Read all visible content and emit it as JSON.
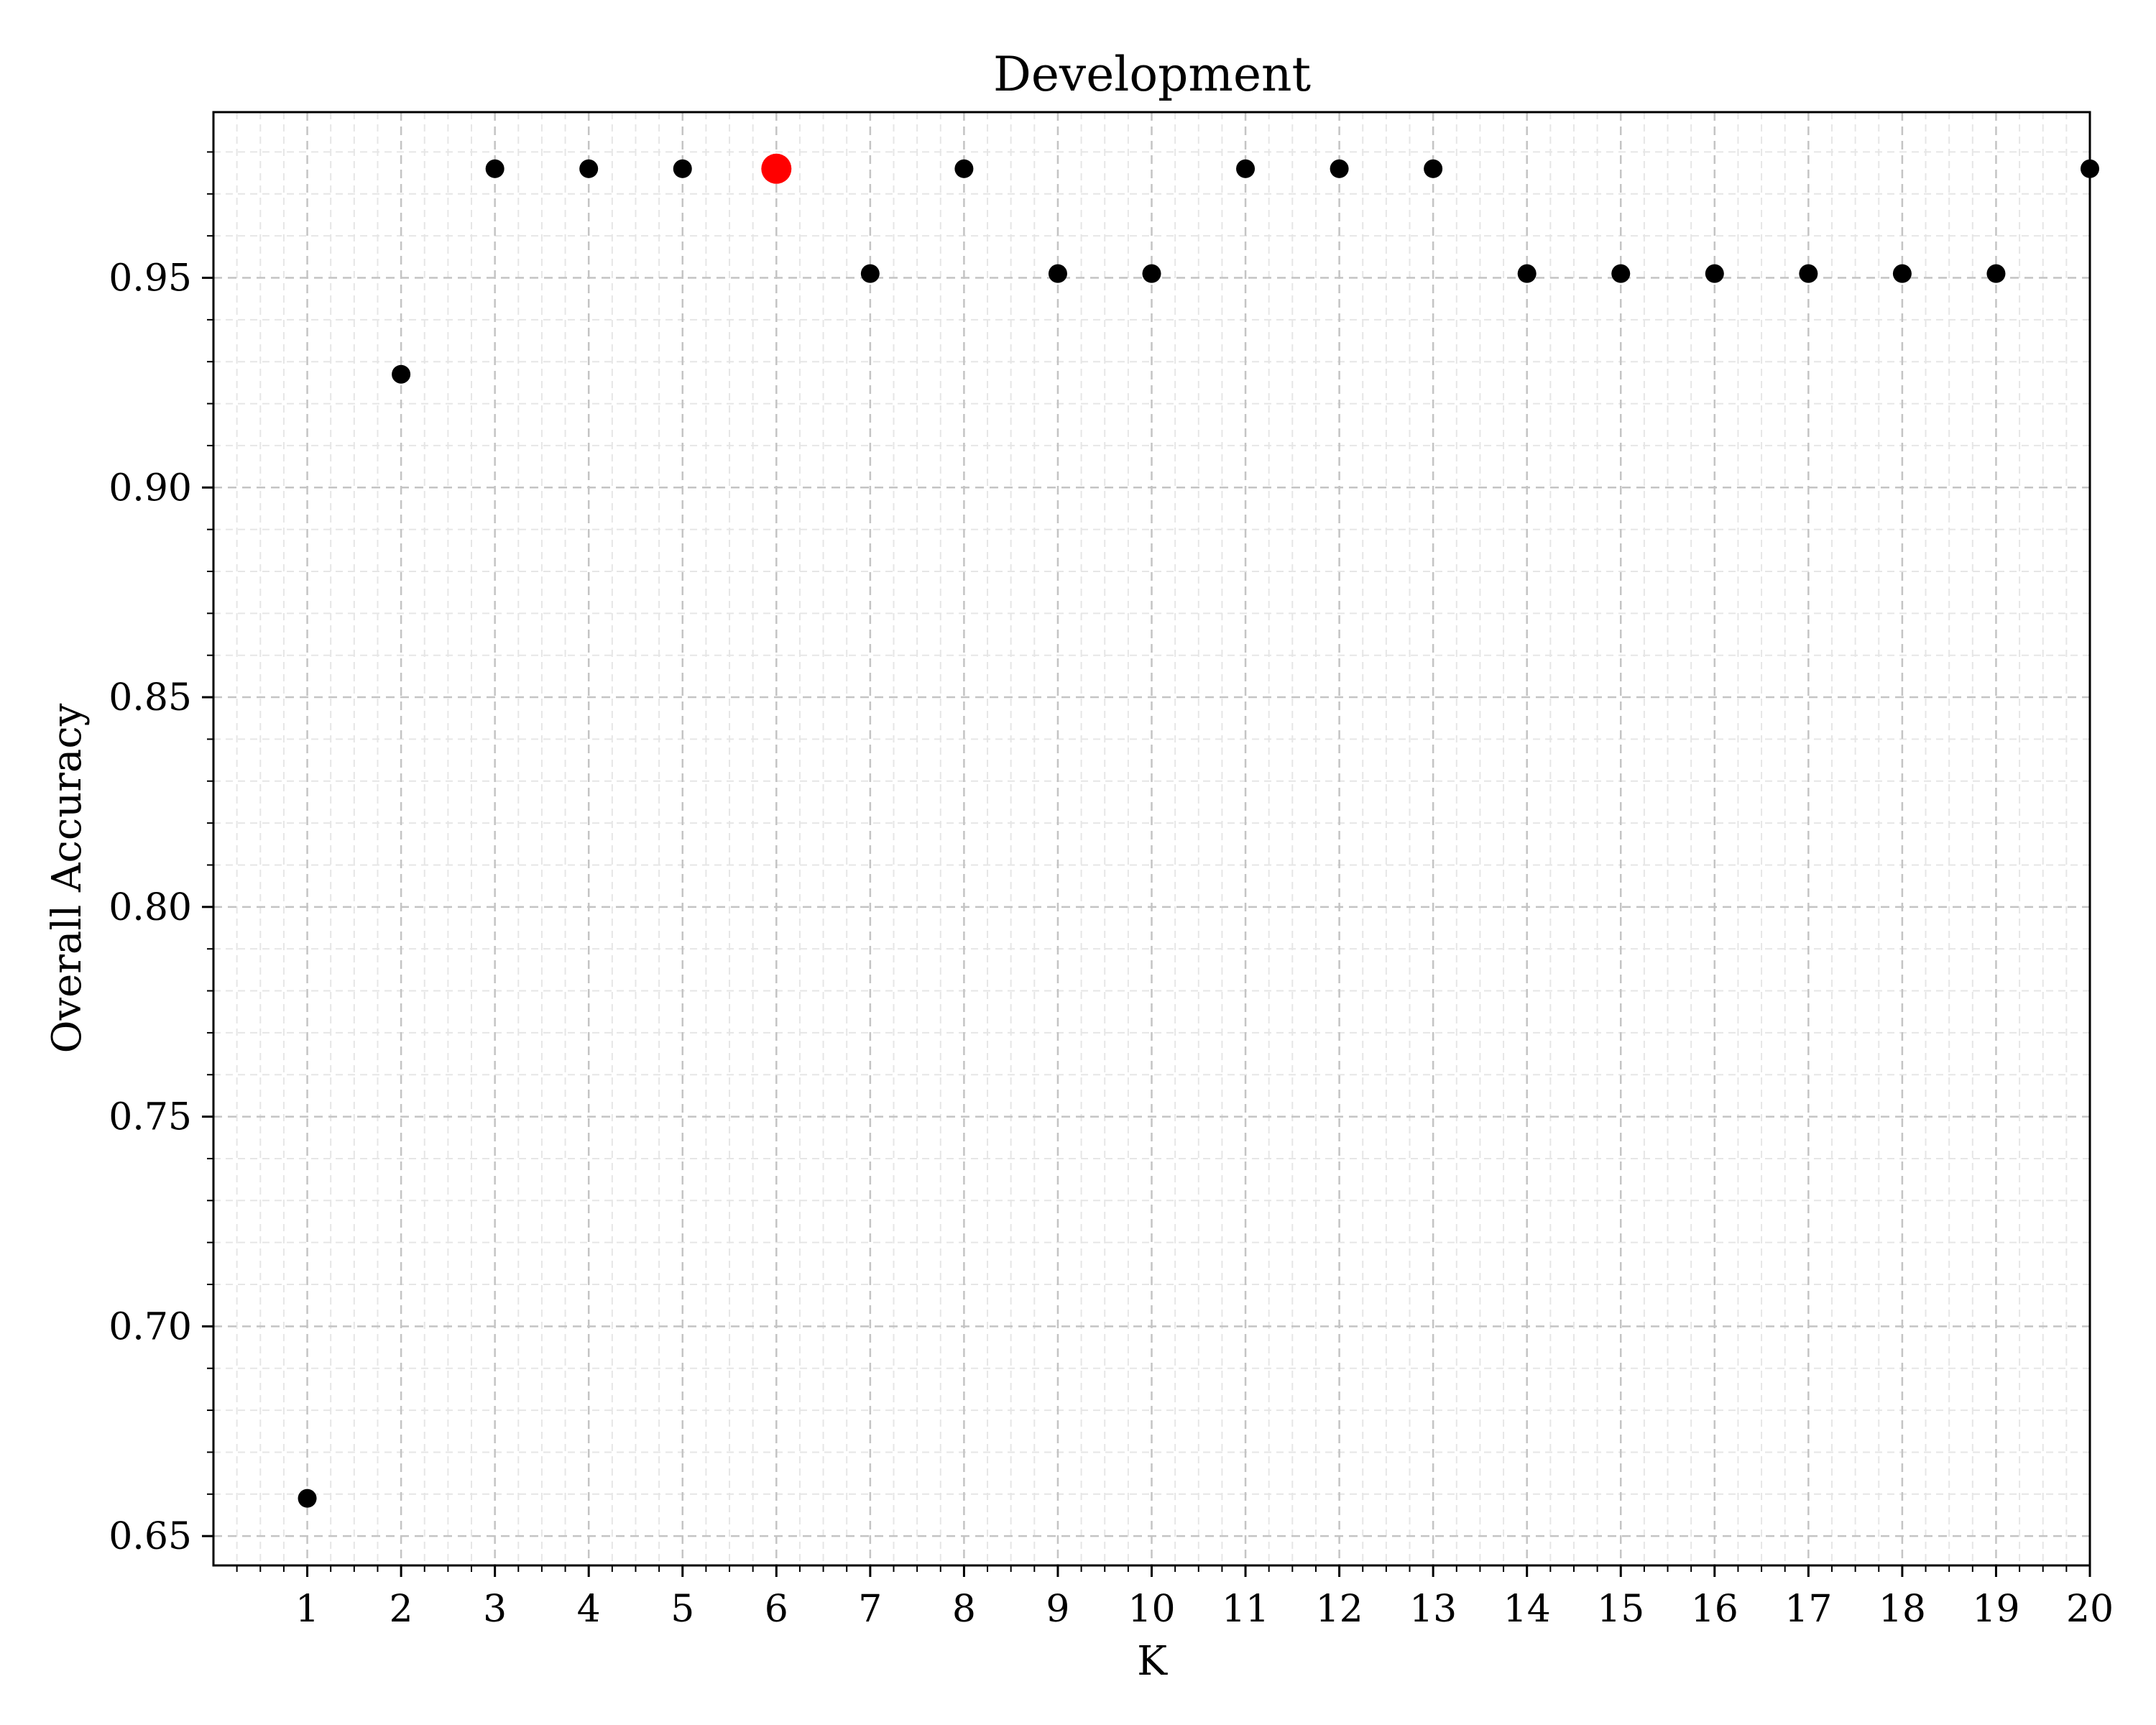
{
  "chart_data": {
    "type": "scatter",
    "title": "Development",
    "xlabel": "K",
    "ylabel": "Overall Accuracy",
    "xlim": [
      0,
      20
    ],
    "ylim": [
      0.643,
      0.9895
    ],
    "x_ticks": [
      1,
      2,
      3,
      4,
      5,
      6,
      7,
      8,
      9,
      10,
      11,
      12,
      13,
      14,
      15,
      16,
      17,
      18,
      19,
      20
    ],
    "y_ticks": [
      0.65,
      0.7,
      0.75,
      0.8,
      0.85,
      0.9,
      0.95
    ],
    "y_tick_labels": [
      "0.65",
      "0.70",
      "0.75",
      "0.80",
      "0.85",
      "0.90",
      "0.95"
    ],
    "grid": true,
    "series": [
      {
        "color": "#000000",
        "points": [
          {
            "x": 1,
            "y": 0.659
          },
          {
            "x": 2,
            "y": 0.927
          },
          {
            "x": 3,
            "y": 0.976
          },
          {
            "x": 4,
            "y": 0.976
          },
          {
            "x": 5,
            "y": 0.976
          },
          {
            "x": 7,
            "y": 0.951
          },
          {
            "x": 8,
            "y": 0.976
          },
          {
            "x": 9,
            "y": 0.951
          },
          {
            "x": 10,
            "y": 0.951
          },
          {
            "x": 11,
            "y": 0.976
          },
          {
            "x": 12,
            "y": 0.976
          },
          {
            "x": 13,
            "y": 0.976
          },
          {
            "x": 14,
            "y": 0.951
          },
          {
            "x": 15,
            "y": 0.951
          },
          {
            "x": 16,
            "y": 0.951
          },
          {
            "x": 17,
            "y": 0.951
          },
          {
            "x": 18,
            "y": 0.951
          },
          {
            "x": 19,
            "y": 0.951
          },
          {
            "x": 20,
            "y": 0.976
          }
        ]
      },
      {
        "color": "#ff0000",
        "highlight": true,
        "points": [
          {
            "x": 6,
            "y": 0.976
          }
        ]
      }
    ]
  }
}
